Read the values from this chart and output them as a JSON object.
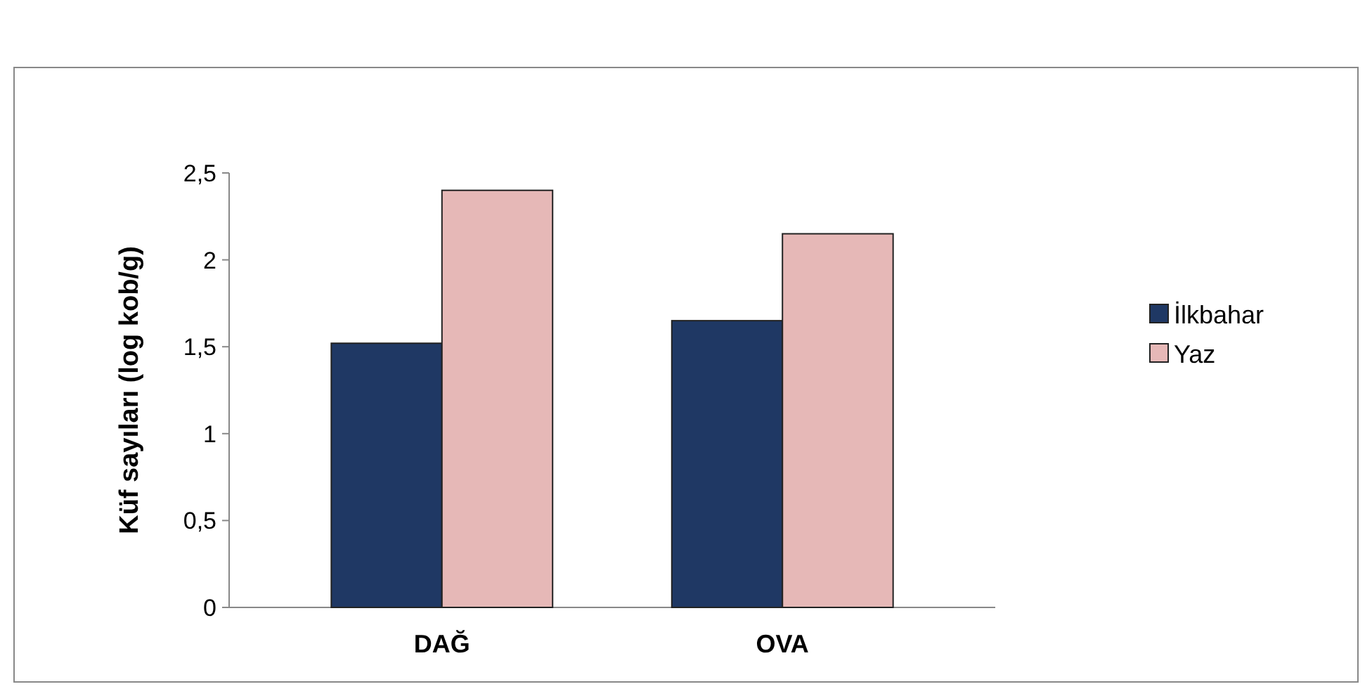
{
  "chart_data": {
    "type": "bar",
    "ylabel": "Küf sayıları (log kob/g)",
    "categories": [
      "DAĞ",
      "OVA"
    ],
    "series": [
      {
        "name": "İlkbahar",
        "color": "#1f3864",
        "values": [
          1.52,
          1.65
        ]
      },
      {
        "name": "Yaz",
        "color": "#e6b8b7",
        "values": [
          2.4,
          2.15
        ]
      }
    ],
    "ylim": [
      0,
      2.5
    ],
    "yticks": [
      0,
      {
        "value": 0.5,
        "label": "0,5"
      },
      1,
      {
        "value": 1.5,
        "label": "1,5"
      },
      2,
      {
        "value": 2.5,
        "label": "2,5"
      }
    ],
    "legend": "right"
  }
}
